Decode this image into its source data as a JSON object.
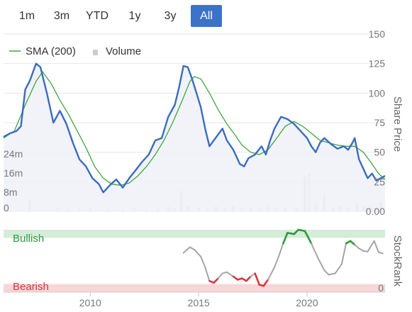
{
  "range_selector": {
    "buttons": [
      {
        "label": "1m",
        "active": false
      },
      {
        "label": "3m",
        "active": false
      },
      {
        "label": "YTD",
        "active": false
      },
      {
        "label": "1y",
        "active": false
      },
      {
        "label": "3y",
        "active": false
      },
      {
        "label": "All",
        "active": true
      }
    ]
  },
  "colors": {
    "price": "#3b6bbf",
    "price_fill": "#eef1f8",
    "sma": "#3fa63f",
    "volume": "#cccccc",
    "bullish_band": "#d5ecd9",
    "bearish_band": "#f7d6d8",
    "rank_bull": "#2e9a3a",
    "rank_neutral": "#a5a5a5",
    "rank_bear": "#d9363e",
    "active_button": "#3b73c8"
  },
  "chart_data": [
    {
      "type": "line",
      "legend": {
        "placement": "top-left",
        "entries": [
          "SMA (200)",
          "Volume"
        ]
      },
      "xlim": [
        2006.0,
        2023.6
      ],
      "x_ticks": [
        {
          "value": 2010,
          "label": "2010"
        },
        {
          "value": 2015,
          "label": "2015"
        },
        {
          "value": 2020,
          "label": "2020"
        }
      ],
      "ylabel": "Share Price",
      "ylim": [
        0,
        150
      ],
      "y_ticks": [
        {
          "value": 0,
          "label": "0.00"
        },
        {
          "value": 25,
          "label": "25"
        },
        {
          "value": 50,
          "label": "50"
        },
        {
          "value": 75,
          "label": "75"
        },
        {
          "value": 100,
          "label": "100"
        },
        {
          "value": 125,
          "label": "125"
        },
        {
          "value": 150,
          "label": "150"
        }
      ],
      "series": [
        {
          "name": "",
          "kind": "price",
          "points": [
            [
              2006.0,
              63
            ],
            [
              2006.3,
              66
            ],
            [
              2006.6,
              68
            ],
            [
              2006.8,
              72
            ],
            [
              2007.0,
              103
            ],
            [
              2007.2,
              110
            ],
            [
              2007.5,
              125
            ],
            [
              2007.7,
              122
            ],
            [
              2008.0,
              100
            ],
            [
              2008.3,
              75
            ],
            [
              2008.6,
              85
            ],
            [
              2008.9,
              74
            ],
            [
              2009.2,
              58
            ],
            [
              2009.5,
              44
            ],
            [
              2009.8,
              38
            ],
            [
              2010.1,
              28
            ],
            [
              2010.4,
              23
            ],
            [
              2010.6,
              16
            ],
            [
              2010.9,
              22
            ],
            [
              2011.2,
              27
            ],
            [
              2011.5,
              20
            ],
            [
              2011.8,
              28
            ],
            [
              2012.1,
              35
            ],
            [
              2012.4,
              42
            ],
            [
              2012.7,
              48
            ],
            [
              2013.0,
              60
            ],
            [
              2013.3,
              62
            ],
            [
              2013.6,
              80
            ],
            [
              2013.9,
              90
            ],
            [
              2014.1,
              105
            ],
            [
              2014.3,
              123
            ],
            [
              2014.5,
              122
            ],
            [
              2014.7,
              112
            ],
            [
              2014.9,
              100
            ],
            [
              2015.1,
              88
            ],
            [
              2015.3,
              70
            ],
            [
              2015.5,
              55
            ],
            [
              2015.7,
              60
            ],
            [
              2015.9,
              65
            ],
            [
              2016.1,
              70
            ],
            [
              2016.3,
              60
            ],
            [
              2016.6,
              52
            ],
            [
              2016.9,
              40
            ],
            [
              2017.1,
              38
            ],
            [
              2017.3,
              45
            ],
            [
              2017.6,
              48
            ],
            [
              2017.9,
              55
            ],
            [
              2018.1,
              48
            ],
            [
              2018.3,
              60
            ],
            [
              2018.5,
              70
            ],
            [
              2018.8,
              80
            ],
            [
              2019.1,
              78
            ],
            [
              2019.4,
              74
            ],
            [
              2019.7,
              68
            ],
            [
              2020.0,
              62
            ],
            [
              2020.2,
              55
            ],
            [
              2020.4,
              50
            ],
            [
              2020.6,
              58
            ],
            [
              2020.8,
              62
            ],
            [
              2021.1,
              57
            ],
            [
              2021.4,
              53
            ],
            [
              2021.7,
              55
            ],
            [
              2021.9,
              52
            ],
            [
              2022.1,
              58
            ],
            [
              2022.2,
              62
            ],
            [
              2022.4,
              44
            ],
            [
              2022.6,
              36
            ],
            [
              2022.8,
              28
            ],
            [
              2023.0,
              32
            ],
            [
              2023.2,
              26
            ],
            [
              2023.4,
              28
            ],
            [
              2023.6,
              30
            ]
          ]
        },
        {
          "name": "SMA (200)",
          "kind": "sma",
          "points": [
            [
              2006.0,
              62
            ],
            [
              2006.5,
              68
            ],
            [
              2007.0,
              90
            ],
            [
              2007.5,
              110
            ],
            [
              2007.8,
              118
            ],
            [
              2008.2,
              108
            ],
            [
              2008.6,
              94
            ],
            [
              2009.0,
              82
            ],
            [
              2009.4,
              68
            ],
            [
              2009.8,
              54
            ],
            [
              2010.2,
              38
            ],
            [
              2010.6,
              28
            ],
            [
              2011.0,
              23
            ],
            [
              2011.4,
              22
            ],
            [
              2011.8,
              24
            ],
            [
              2012.2,
              30
            ],
            [
              2012.6,
              38
            ],
            [
              2013.0,
              48
            ],
            [
              2013.4,
              60
            ],
            [
              2013.8,
              75
            ],
            [
              2014.2,
              92
            ],
            [
              2014.6,
              110
            ],
            [
              2014.8,
              114
            ],
            [
              2015.1,
              112
            ],
            [
              2015.5,
              100
            ],
            [
              2015.9,
              86
            ],
            [
              2016.3,
              74
            ],
            [
              2016.7,
              64
            ],
            [
              2017.0,
              56
            ],
            [
              2017.4,
              50
            ],
            [
              2017.8,
              48
            ],
            [
              2018.2,
              52
            ],
            [
              2018.6,
              62
            ],
            [
              2019.0,
              72
            ],
            [
              2019.4,
              76
            ],
            [
              2019.8,
              72
            ],
            [
              2020.2,
              66
            ],
            [
              2020.6,
              60
            ],
            [
              2021.0,
              58
            ],
            [
              2021.4,
              56
            ],
            [
              2021.8,
              55
            ],
            [
              2022.2,
              55
            ],
            [
              2022.6,
              50
            ],
            [
              2023.0,
              40
            ],
            [
              2023.3,
              32
            ],
            [
              2023.6,
              27
            ]
          ]
        }
      ]
    },
    {
      "type": "bar",
      "series_name": "Volume",
      "y_ticks": [
        {
          "value": 0,
          "label": "0"
        },
        {
          "value": 8,
          "label": "8m"
        },
        {
          "value": 16,
          "label": "16m"
        },
        {
          "value": 24,
          "label": "24m"
        }
      ],
      "ylim": [
        0,
        32
      ],
      "values": [
        [
          2007.2,
          5.0
        ],
        [
          2008.5,
          1.2
        ],
        [
          2009.0,
          0.9
        ],
        [
          2009.5,
          1.0
        ],
        [
          2010.0,
          1.1
        ],
        [
          2010.8,
          0.9
        ],
        [
          2011.5,
          0.8
        ],
        [
          2012.0,
          1.0
        ],
        [
          2012.6,
          0.8
        ],
        [
          2013.1,
          1.0
        ],
        [
          2013.6,
          1.8
        ],
        [
          2013.9,
          1.2
        ],
        [
          2014.2,
          8.5
        ],
        [
          2014.5,
          2.0
        ],
        [
          2015.0,
          1.5
        ],
        [
          2015.4,
          1.0
        ],
        [
          2015.8,
          2.0
        ],
        [
          2016.2,
          1.3
        ],
        [
          2016.6,
          2.2
        ],
        [
          2017.0,
          1.1
        ],
        [
          2017.4,
          1.4
        ],
        [
          2017.8,
          1.0
        ],
        [
          2018.2,
          2.5
        ],
        [
          2018.6,
          1.2
        ],
        [
          2019.0,
          1.4
        ],
        [
          2019.5,
          1.2
        ],
        [
          2019.9,
          14.5
        ],
        [
          2020.1,
          15.5
        ],
        [
          2020.4,
          3.0
        ],
        [
          2020.8,
          6.5
        ],
        [
          2021.2,
          1.5
        ],
        [
          2021.5,
          2.5
        ],
        [
          2021.9,
          1.5
        ],
        [
          2022.3,
          3.5
        ],
        [
          2022.6,
          2.0
        ],
        [
          2023.0,
          1.5
        ],
        [
          2023.4,
          3.5
        ]
      ]
    },
    {
      "type": "line",
      "ylabel": "StockRank",
      "xlim": [
        2006.0,
        2023.6
      ],
      "ylim": [
        0,
        100
      ],
      "y_ticks": [
        {
          "value": 0,
          "label": "0"
        }
      ],
      "bands": [
        {
          "label": "Bullish",
          "from": 87,
          "to": 100
        },
        {
          "label": "Bearish",
          "from": 0,
          "to": 13
        }
      ],
      "thresholds": {
        "bullish_at_or_above": 78,
        "bearish_below": 25
      },
      "points": [
        [
          2014.3,
          63
        ],
        [
          2014.6,
          72
        ],
        [
          2014.8,
          68
        ],
        [
          2015.1,
          57
        ],
        [
          2015.3,
          40
        ],
        [
          2015.5,
          18
        ],
        [
          2015.7,
          15
        ],
        [
          2015.9,
          22
        ],
        [
          2016.1,
          30
        ],
        [
          2016.3,
          32
        ],
        [
          2016.6,
          25
        ],
        [
          2016.8,
          20
        ],
        [
          2017.0,
          22
        ],
        [
          2017.2,
          18
        ],
        [
          2017.4,
          25
        ],
        [
          2017.6,
          30
        ],
        [
          2017.8,
          12
        ],
        [
          2018.0,
          10
        ],
        [
          2018.2,
          20
        ],
        [
          2018.5,
          40
        ],
        [
          2018.7,
          58
        ],
        [
          2018.9,
          78
        ],
        [
          2019.1,
          95
        ],
        [
          2019.4,
          93
        ],
        [
          2019.6,
          100
        ],
        [
          2019.9,
          98
        ],
        [
          2020.2,
          78
        ],
        [
          2020.5,
          55
        ],
        [
          2020.8,
          35
        ],
        [
          2021.0,
          28
        ],
        [
          2021.3,
          30
        ],
        [
          2021.6,
          45
        ],
        [
          2021.8,
          78
        ],
        [
          2022.0,
          82
        ],
        [
          2022.2,
          76
        ],
        [
          2022.4,
          70
        ],
        [
          2022.6,
          66
        ],
        [
          2022.8,
          65
        ],
        [
          2022.9,
          71
        ],
        [
          2023.1,
          82
        ],
        [
          2023.3,
          64
        ],
        [
          2023.5,
          62
        ],
        [
          2023.7,
          70
        ],
        [
          2023.9,
          80
        ],
        [
          2024.1,
          75
        ],
        [
          2024.3,
          82
        ]
      ]
    }
  ]
}
